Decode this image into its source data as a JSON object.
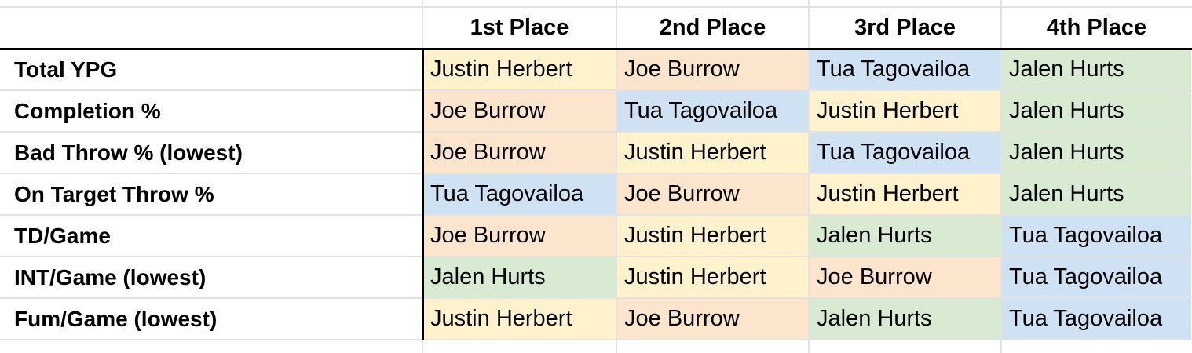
{
  "colors": {
    "Justin Herbert": "#fff2cc",
    "Joe Burrow": "#fce5cd",
    "Tua Tagovailoa": "#cfe2f3",
    "Jalen Hurts": "#d9ead3",
    "grid": "#e2e2e2"
  },
  "headers": [
    "1st Place",
    "2nd Place",
    "3rd Place",
    "4th Place"
  ],
  "rows": [
    {
      "label": "Total YPG",
      "values": [
        "Justin Herbert",
        "Joe Burrow",
        "Tua Tagovailoa",
        "Jalen Hurts"
      ]
    },
    {
      "label": "Completion %",
      "values": [
        "Joe Burrow",
        "Tua Tagovailoa",
        "Justin Herbert",
        "Jalen Hurts"
      ]
    },
    {
      "label": "Bad Throw % (lowest)",
      "values": [
        "Joe Burrow",
        "Justin Herbert",
        "Tua Tagovailoa",
        "Jalen Hurts"
      ]
    },
    {
      "label": "On Target Throw %",
      "values": [
        "Tua Tagovailoa",
        "Joe Burrow",
        "Justin Herbert",
        "Jalen Hurts"
      ]
    },
    {
      "label": "TD/Game",
      "values": [
        "Joe Burrow",
        "Justin Herbert",
        "Jalen Hurts",
        "Tua Tagovailoa"
      ]
    },
    {
      "label": "INT/Game (lowest)",
      "values": [
        "Jalen Hurts",
        "Justin Herbert",
        "Joe Burrow",
        "Tua Tagovailoa"
      ]
    },
    {
      "label": "Fum/Game (lowest)",
      "values": [
        "Justin Herbert",
        "Joe Burrow",
        "Jalen Hurts",
        "Tua Tagovailoa"
      ]
    }
  ]
}
